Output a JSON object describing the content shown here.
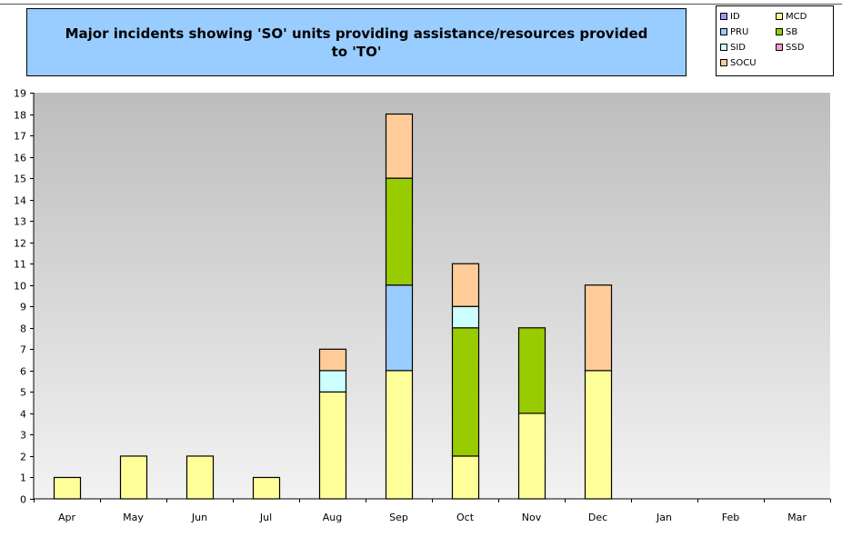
{
  "chart_data": {
    "type": "bar",
    "stacked": true,
    "title": "Major incidents showing 'SO' units providing assistance/resources provided to 'TO'",
    "title_lines": [
      "Major incidents showing 'SO' units providing assistance/resources provided",
      "to 'TO'"
    ],
    "categories": [
      "Apr",
      "May",
      "Jun",
      "Jul",
      "Aug",
      "Sep",
      "Oct",
      "Nov",
      "Dec",
      "Jan",
      "Feb",
      "Mar"
    ],
    "ylim": [
      0,
      19
    ],
    "yticks": [
      0,
      1,
      2,
      3,
      4,
      5,
      6,
      7,
      8,
      9,
      10,
      11,
      12,
      13,
      14,
      15,
      16,
      17,
      18,
      19
    ],
    "grid": false,
    "legend_position": "top-right",
    "series": [
      {
        "name": "ID",
        "color": "#9999ff",
        "values": [
          0,
          0,
          0,
          0,
          0,
          0,
          0,
          0,
          0,
          0,
          0,
          0
        ]
      },
      {
        "name": "MCD",
        "color": "#ffff99",
        "values": [
          1,
          2,
          2,
          1,
          5,
          6,
          2,
          4,
          6,
          0,
          0,
          0
        ]
      },
      {
        "name": "PRU",
        "color": "#99ccff",
        "values": [
          0,
          0,
          0,
          0,
          0,
          4,
          0,
          0,
          0,
          0,
          0,
          0
        ]
      },
      {
        "name": "SB",
        "color": "#99cc00",
        "values": [
          0,
          0,
          0,
          0,
          0,
          5,
          6,
          4,
          0,
          0,
          0,
          0
        ]
      },
      {
        "name": "SID",
        "color": "#ccffff",
        "values": [
          0,
          0,
          0,
          0,
          1,
          0,
          1,
          0,
          0,
          0,
          0,
          0
        ]
      },
      {
        "name": "SSD",
        "color": "#ff99cc",
        "values": [
          0,
          0,
          0,
          0,
          0,
          0,
          0,
          0,
          0,
          0,
          0,
          0
        ]
      },
      {
        "name": "SOCU",
        "color": "#ffcc99",
        "values": [
          0,
          0,
          0,
          0,
          1,
          3,
          2,
          0,
          4,
          0,
          0,
          0
        ]
      }
    ]
  }
}
